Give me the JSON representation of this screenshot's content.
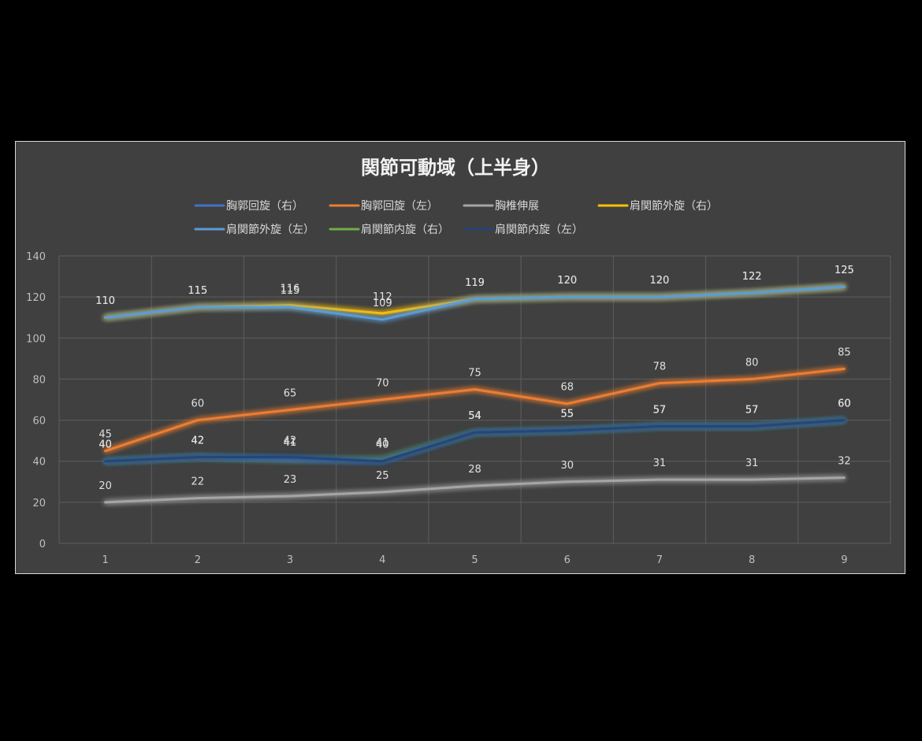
{
  "chart_data": {
    "type": "line",
    "title": "関節可動域（上半身）",
    "xlabel": "",
    "ylabel": "",
    "x": [
      1,
      2,
      3,
      4,
      5,
      6,
      7,
      8,
      9
    ],
    "x_tick_labels": [
      "1",
      "2",
      "3",
      "4",
      "5",
      "6",
      "7",
      "8",
      "9"
    ],
    "ylim": [
      0,
      140
    ],
    "y_tick_labels": [
      "0",
      "20",
      "40",
      "60",
      "80",
      "100",
      "120",
      "140"
    ],
    "grid": true,
    "legend_position": "top",
    "series": [
      {
        "name": "胸郭回旋（右）",
        "color": "#4472c4",
        "values": [
          40,
          42,
          41,
          40,
          54,
          55,
          57,
          57,
          60
        ]
      },
      {
        "name": "胸郭回旋（左）",
        "color": "#ed7d31",
        "values": [
          45,
          60,
          65,
          70,
          75,
          68,
          78,
          80,
          85
        ]
      },
      {
        "name": "胸椎伸展",
        "color": "#a5a5a5",
        "values": [
          20,
          22,
          23,
          25,
          28,
          30,
          31,
          31,
          32
        ]
      },
      {
        "name": "肩関節外旋（右）",
        "color": "#ffc000",
        "values": [
          110,
          115,
          116,
          112,
          119,
          120,
          120,
          122,
          125
        ]
      },
      {
        "name": "肩関節外旋（左）",
        "color": "#5b9bd5",
        "values": [
          110,
          115,
          115,
          109,
          119,
          120,
          120,
          122,
          125
        ]
      },
      {
        "name": "肩関節内旋（右）",
        "color": "#70ad47",
        "values": [
          40,
          42,
          41,
          41,
          54,
          55,
          57,
          57,
          60
        ]
      },
      {
        "name": "肩関節内旋（左）",
        "color": "#264478",
        "values": [
          40,
          42,
          42,
          40,
          54,
          55,
          57,
          57,
          60
        ]
      }
    ]
  }
}
